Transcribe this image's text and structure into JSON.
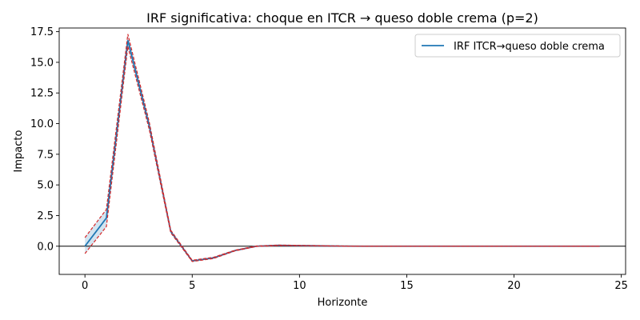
{
  "chart_data": {
    "type": "line",
    "title": "IRF significativa: choque en ITCR → queso doble crema (p=2)",
    "xlabel": "Horizonte",
    "ylabel": "Impacto",
    "xlim": [
      -1.2,
      25.2
    ],
    "ylim": [
      -2.3,
      17.8
    ],
    "xticks": [
      0,
      5,
      10,
      15,
      20,
      25
    ],
    "xtick_labels": [
      "0",
      "5",
      "10",
      "15",
      "20",
      "25"
    ],
    "yticks": [
      0,
      2.5,
      5,
      7.5,
      10,
      12.5,
      15,
      17.5
    ],
    "ytick_labels": [
      "0.0",
      "2.5",
      "5.0",
      "7.5",
      "10.0",
      "12.5",
      "15.0",
      "17.5"
    ],
    "grid": false,
    "legend_position": "top-right",
    "zero_line": true,
    "x": [
      0,
      1,
      2,
      3,
      4,
      5,
      6,
      7,
      8,
      9,
      10,
      11,
      12,
      13,
      14,
      15,
      16,
      17,
      18,
      19,
      20,
      21,
      22,
      23,
      24
    ],
    "series": [
      {
        "name": "IRF ITCR→queso doble crema",
        "color": "#1f77b4",
        "values": [
          0.0,
          2.3,
          16.8,
          9.8,
          1.2,
          -1.2,
          -0.95,
          -0.35,
          0.0,
          0.07,
          0.05,
          0.03,
          0.01,
          0.0,
          0.0,
          0.0,
          0.0,
          0.0,
          0.0,
          0.0,
          0.0,
          0.0,
          0.0,
          0.0,
          0.0
        ],
        "lower": [
          -0.6,
          1.6,
          16.3,
          9.5,
          1.1,
          -1.25,
          -1.0,
          -0.38,
          -0.02,
          0.05,
          0.04,
          0.02,
          0.0,
          0.0,
          0.0,
          0.0,
          0.0,
          0.0,
          0.0,
          0.0,
          0.0,
          0.0,
          0.0,
          0.0,
          0.0
        ],
        "upper": [
          0.7,
          3.0,
          17.3,
          10.1,
          1.3,
          -1.15,
          -0.9,
          -0.32,
          0.02,
          0.09,
          0.07,
          0.04,
          0.02,
          0.0,
          0.0,
          0.0,
          0.0,
          0.0,
          0.0,
          0.0,
          0.0,
          0.0,
          0.0,
          0.0,
          0.0
        ]
      }
    ],
    "band_color": "#1f77b4",
    "ci_color": "#d62728"
  }
}
